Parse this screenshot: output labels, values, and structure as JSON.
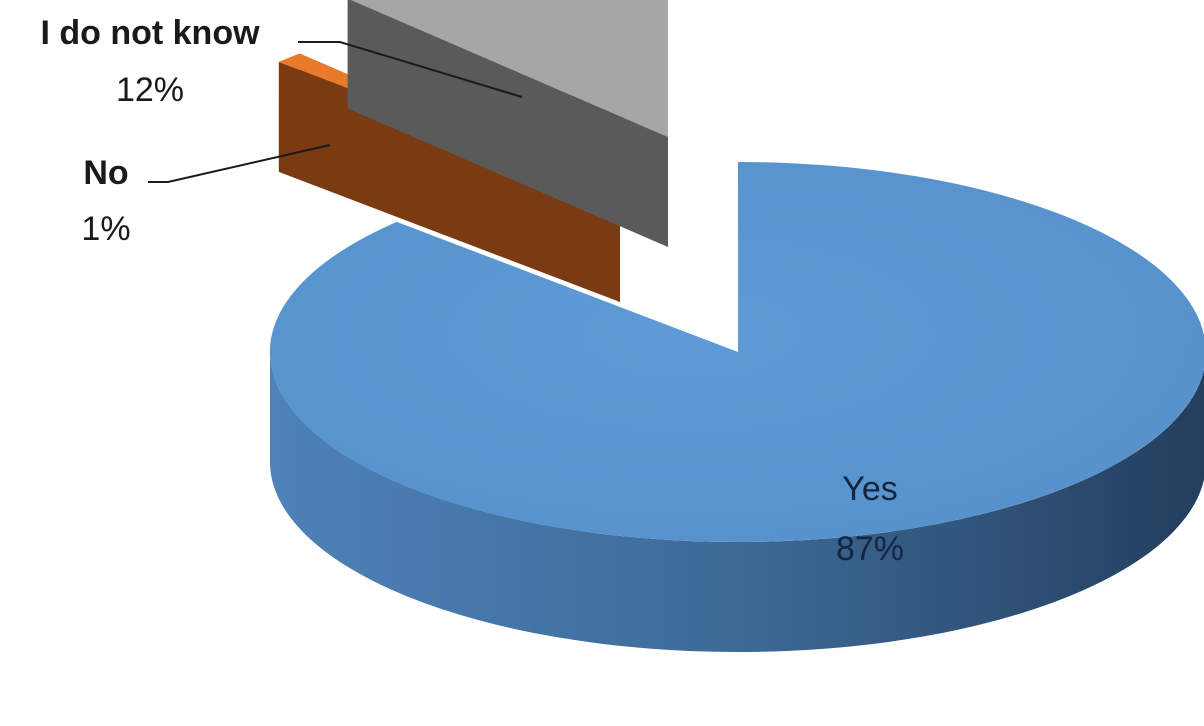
{
  "chart_data": {
    "type": "pie",
    "style": "3d-exploded",
    "title": "",
    "legend": "none",
    "categories": [
      "Yes",
      "No",
      "I do not know"
    ],
    "values": [
      87,
      1,
      12
    ],
    "labels": [
      {
        "name": "Yes",
        "percent": "87%"
      },
      {
        "name": "No",
        "percent": "1%"
      },
      {
        "name": "I do not know",
        "percent": "12%"
      }
    ],
    "colors": {
      "yes_top": "#5b96d0",
      "yes_side": "#3e6e9e",
      "no_top": "#e87a2a",
      "no_side": "#7a3a12",
      "dont_know_top": "#a6a6a6",
      "dont_know_side": "#4a4a4a"
    }
  }
}
